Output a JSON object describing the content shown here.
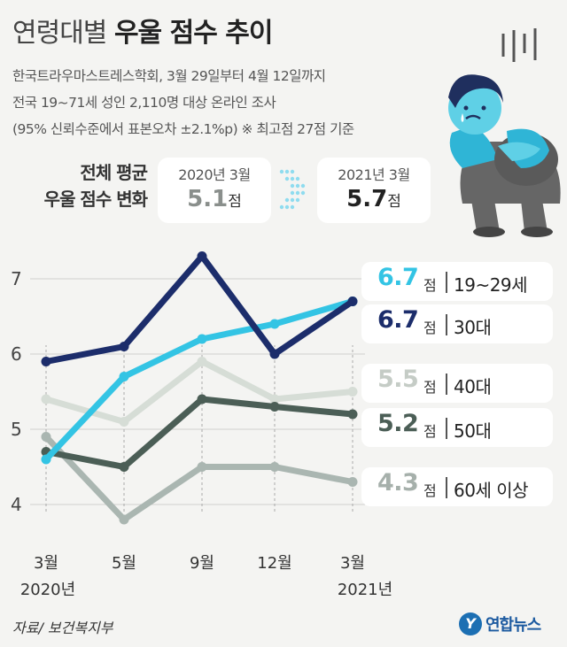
{
  "header": {
    "title_light": "연령대별",
    "title_bold": "우울 점수 추이",
    "subtitle_lines": [
      "한국트라우마스트레스학회, 3월 29일부터 4월 12일까지",
      "전국 19~71세 성인 2,110명 대상 온라인 조사",
      "(95% 신뢰수준에서 표본오차 ±2.1%p)  ※ 최고점 27점 기준"
    ]
  },
  "comparison": {
    "label_line1": "전체 평균",
    "label_line2": "우울 점수 변화",
    "before": {
      "year": "2020년 3월",
      "value": "5.1",
      "unit": "점"
    },
    "after": {
      "year": "2021년 3월",
      "value": "5.7",
      "unit": "점"
    }
  },
  "colors": {
    "c19_29": "#33c4e4",
    "c30": "#1c2d6b",
    "c40": "#d6ddd6",
    "c50": "#4b5e56",
    "c60": "#aab6b1"
  },
  "chart_data": {
    "type": "line",
    "categories": [
      "3월",
      "5월",
      "9월",
      "12월",
      "3월"
    ],
    "category_years": [
      "2020년",
      "",
      "",
      "",
      "2021년"
    ],
    "ylim": [
      4,
      7
    ],
    "yticks": [
      4,
      5,
      6,
      7
    ],
    "series": [
      {
        "name": "40대",
        "color": "#d6ddd6",
        "values": [
          5.4,
          5.1,
          5.9,
          5.4,
          5.5
        ],
        "label_value": "5.5",
        "label_age": "40대",
        "label_color": "#c5ccc6"
      },
      {
        "name": "60세 이상",
        "color": "#aab6b1",
        "values": [
          4.9,
          3.8,
          4.5,
          4.5,
          4.3
        ],
        "label_value": "4.3",
        "label_age": "60세 이상",
        "label_color": "#a6b0ab"
      },
      {
        "name": "50대",
        "color": "#4b5e56",
        "values": [
          4.7,
          4.5,
          5.4,
          5.3,
          5.2
        ],
        "label_value": "5.2",
        "label_age": "50대",
        "label_color": "#4b5e56"
      },
      {
        "name": "19~29세",
        "color": "#33c4e4",
        "values": [
          4.6,
          5.7,
          6.2,
          6.4,
          6.7
        ],
        "label_value": "6.7",
        "label_age": "19~29세",
        "label_color": "#33c4e4"
      },
      {
        "name": "30대",
        "color": "#1c2d6b",
        "values": [
          5.9,
          6.1,
          7.3,
          6.0,
          6.7
        ],
        "label_value": "6.7",
        "label_age": "30대",
        "label_color": "#1c2d6b"
      }
    ],
    "legend_order": [
      "19~29세",
      "30대",
      "40대",
      "50대",
      "60세 이상"
    ],
    "legend_unit": "점"
  },
  "footer": {
    "source": "자료/ 보건복지부",
    "logo_text": "연합뉴스"
  }
}
